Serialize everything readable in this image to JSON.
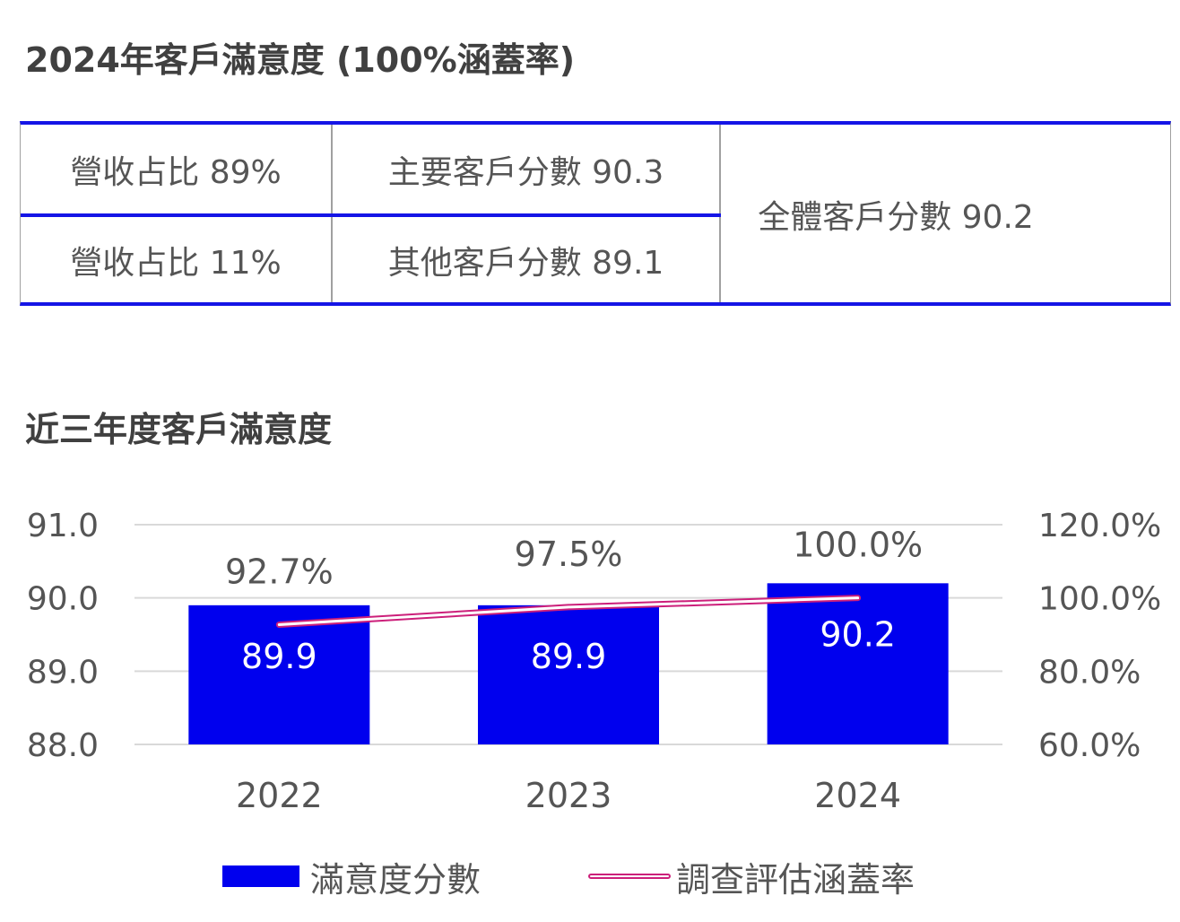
{
  "title_main": "2024年客戶滿意度 (100%涵蓋率)",
  "summary": {
    "share_major": "營收占比 89%",
    "score_major": "主要客戶分數 90.3",
    "share_other": "營收占比 11%",
    "score_other": "其他客戶分數 89.1",
    "score_all": "全體客戶分數 90.2"
  },
  "title_chart": "近三年度客戶滿意度",
  "colors": {
    "bar": "#0000ee",
    "line": "#cc1f7a",
    "rule": "#1515e6"
  },
  "chart_data": {
    "type": "bar",
    "categories": [
      "2022",
      "2023",
      "2024"
    ],
    "series": [
      {
        "name": "滿意度分數",
        "type": "bar",
        "axis": "left",
        "values": [
          89.9,
          89.9,
          90.2
        ],
        "value_labels": [
          "89.9",
          "89.9",
          "90.2"
        ]
      },
      {
        "name": "調查評估涵蓋率",
        "type": "line",
        "axis": "right",
        "values": [
          92.7,
          97.5,
          100.0
        ],
        "value_labels": [
          "92.7%",
          "97.5%",
          "100.0%"
        ]
      }
    ],
    "y_left": {
      "range": [
        88.0,
        91.0
      ],
      "ticks": [
        "91.0",
        "90.0",
        "89.0",
        "88.0"
      ]
    },
    "y_right": {
      "range": [
        60.0,
        120.0
      ],
      "ticks": [
        "120.0%",
        "100.0%",
        "80.0%",
        "60.0%"
      ]
    },
    "grid": true,
    "legend": "bottom"
  }
}
